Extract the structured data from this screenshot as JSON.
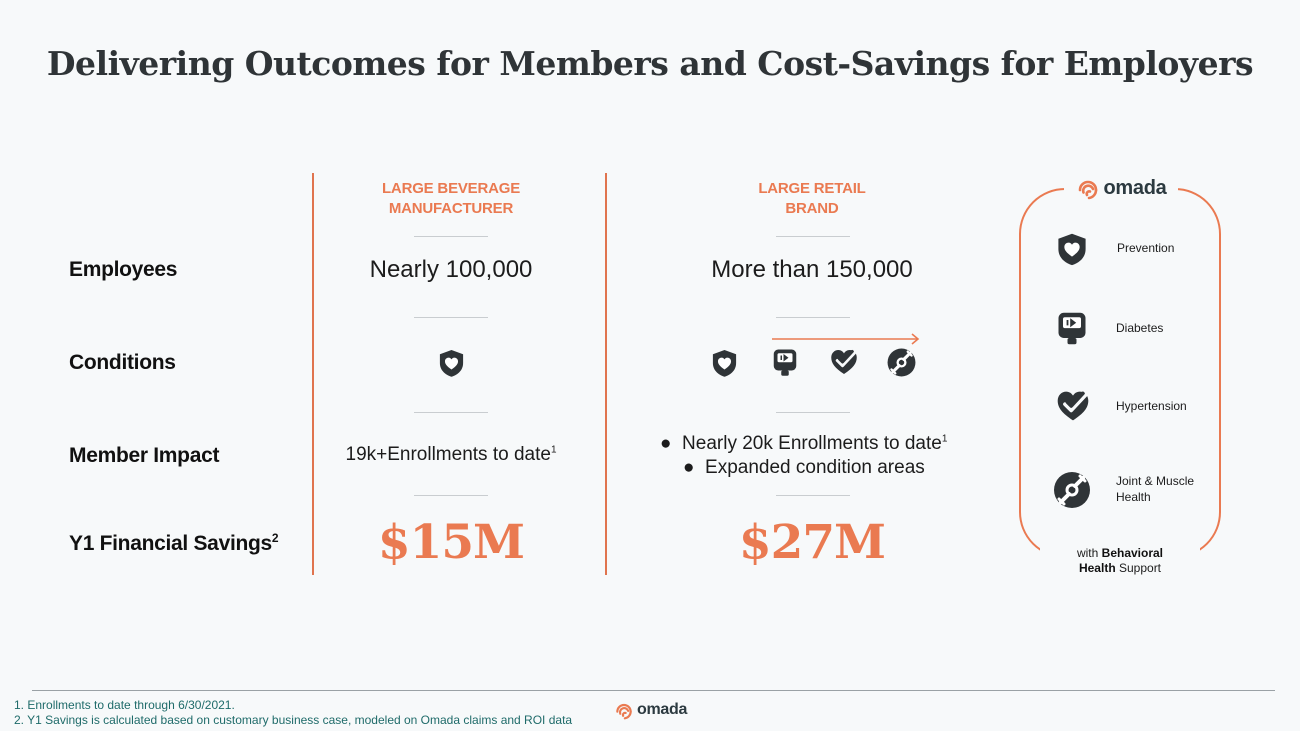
{
  "title": "Delivering Outcomes for Members and Cost-Savings for Employers",
  "row_labels": {
    "employees": "Employees",
    "conditions": "Conditions",
    "member_impact": "Member Impact",
    "savings": "Y1 Financial Savings",
    "savings_sup": "2"
  },
  "col1": {
    "header_line1": "LARGE BEVERAGE",
    "header_line2": "MANUFACTURER",
    "employees": "Nearly 100,000",
    "impact": "19k+Enrollments to date",
    "impact_sup": "1",
    "savings": "$15M"
  },
  "col2": {
    "header_line1": "LARGE RETAIL",
    "header_line2": "BRAND",
    "employees": "More than 150,000",
    "bullet1": "Nearly 20k Enrollments to date",
    "bullet1_sup": "1",
    "bullet2": "Expanded condition areas",
    "savings": "$27M"
  },
  "panel": {
    "logo": "omada",
    "items": [
      {
        "icon": "shield-heart-icon",
        "label": "Prevention"
      },
      {
        "icon": "glucose-meter-icon",
        "label": "Diabetes"
      },
      {
        "icon": "heart-check-icon",
        "label": "Hypertension"
      },
      {
        "icon": "bone-joint-icon",
        "label": "Joint & Muscle Health"
      }
    ],
    "footer_prefix": "with ",
    "footer_bold1": "Behavioral",
    "footer_bold2": "Health",
    "footer_suffix": " Support"
  },
  "footnotes": [
    "1.  Enrollments to date through 6/30/2021.",
    "2.  Y1 Savings is calculated based on customary business case, modeled on Omada claims and ROI data"
  ],
  "footer_logo": "omada",
  "colors": {
    "accent": "#ea7a51",
    "icon": "#2f3437",
    "title": "#2f3437",
    "footnote": "#1f6b6a"
  }
}
